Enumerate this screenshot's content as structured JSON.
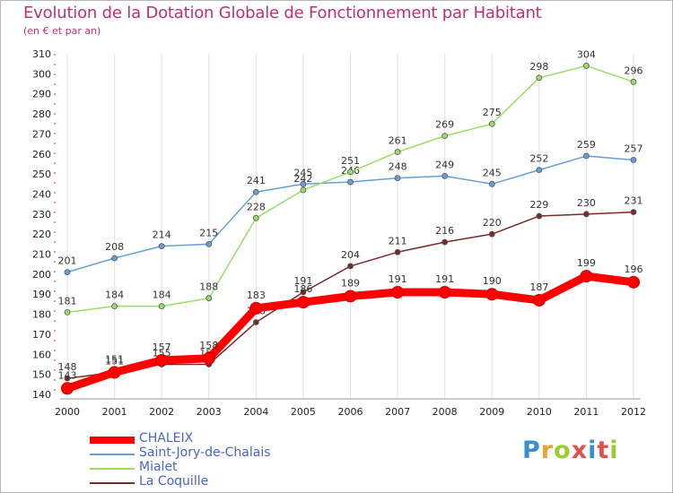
{
  "chart_data": {
    "type": "line",
    "title": "Evolution de la Dotation Globale de Fonctionnement par Habitant",
    "subtitle": "(en € et par an)",
    "xlabel": "",
    "ylabel": "",
    "ylim": [
      140,
      310
    ],
    "yticks": [
      140,
      150,
      160,
      170,
      180,
      190,
      200,
      210,
      220,
      230,
      240,
      250,
      260,
      270,
      280,
      290,
      300,
      310
    ],
    "x": [
      "2000",
      "2001",
      "2002",
      "2003",
      "2004",
      "2005",
      "2006",
      "2007",
      "2008",
      "2009",
      "2010",
      "2011",
      "2012"
    ],
    "legend_position": "bottom-left",
    "series": [
      {
        "name": "CHALEIX",
        "color": "#ff0000",
        "bold": true,
        "values": [
          143,
          151,
          157,
          158,
          183,
          186,
          189,
          191,
          191,
          190,
          187,
          199,
          196
        ]
      },
      {
        "name": "Saint-Jory-de-Chalais",
        "color": "#6a9fd4",
        "values": [
          201,
          208,
          214,
          215,
          241,
          245,
          246,
          248,
          249,
          245,
          252,
          259,
          257
        ]
      },
      {
        "name": "Mialet",
        "color": "#99dd66",
        "values": [
          181,
          184,
          184,
          188,
          228,
          242,
          251,
          261,
          269,
          275,
          298,
          304,
          296
        ]
      },
      {
        "name": "La Coquille",
        "color": "#7a2a2a",
        "values": [
          148,
          151,
          155,
          155,
          176,
          191,
          204,
          211,
          216,
          220,
          229,
          230,
          231
        ]
      }
    ]
  },
  "logo": {
    "text": "Proxiti",
    "colors": [
      "#3a8fd0",
      "#f0a030",
      "#9acd32",
      "#e05050",
      "#3a8fd0",
      "#e05050",
      "#9acd32"
    ]
  }
}
